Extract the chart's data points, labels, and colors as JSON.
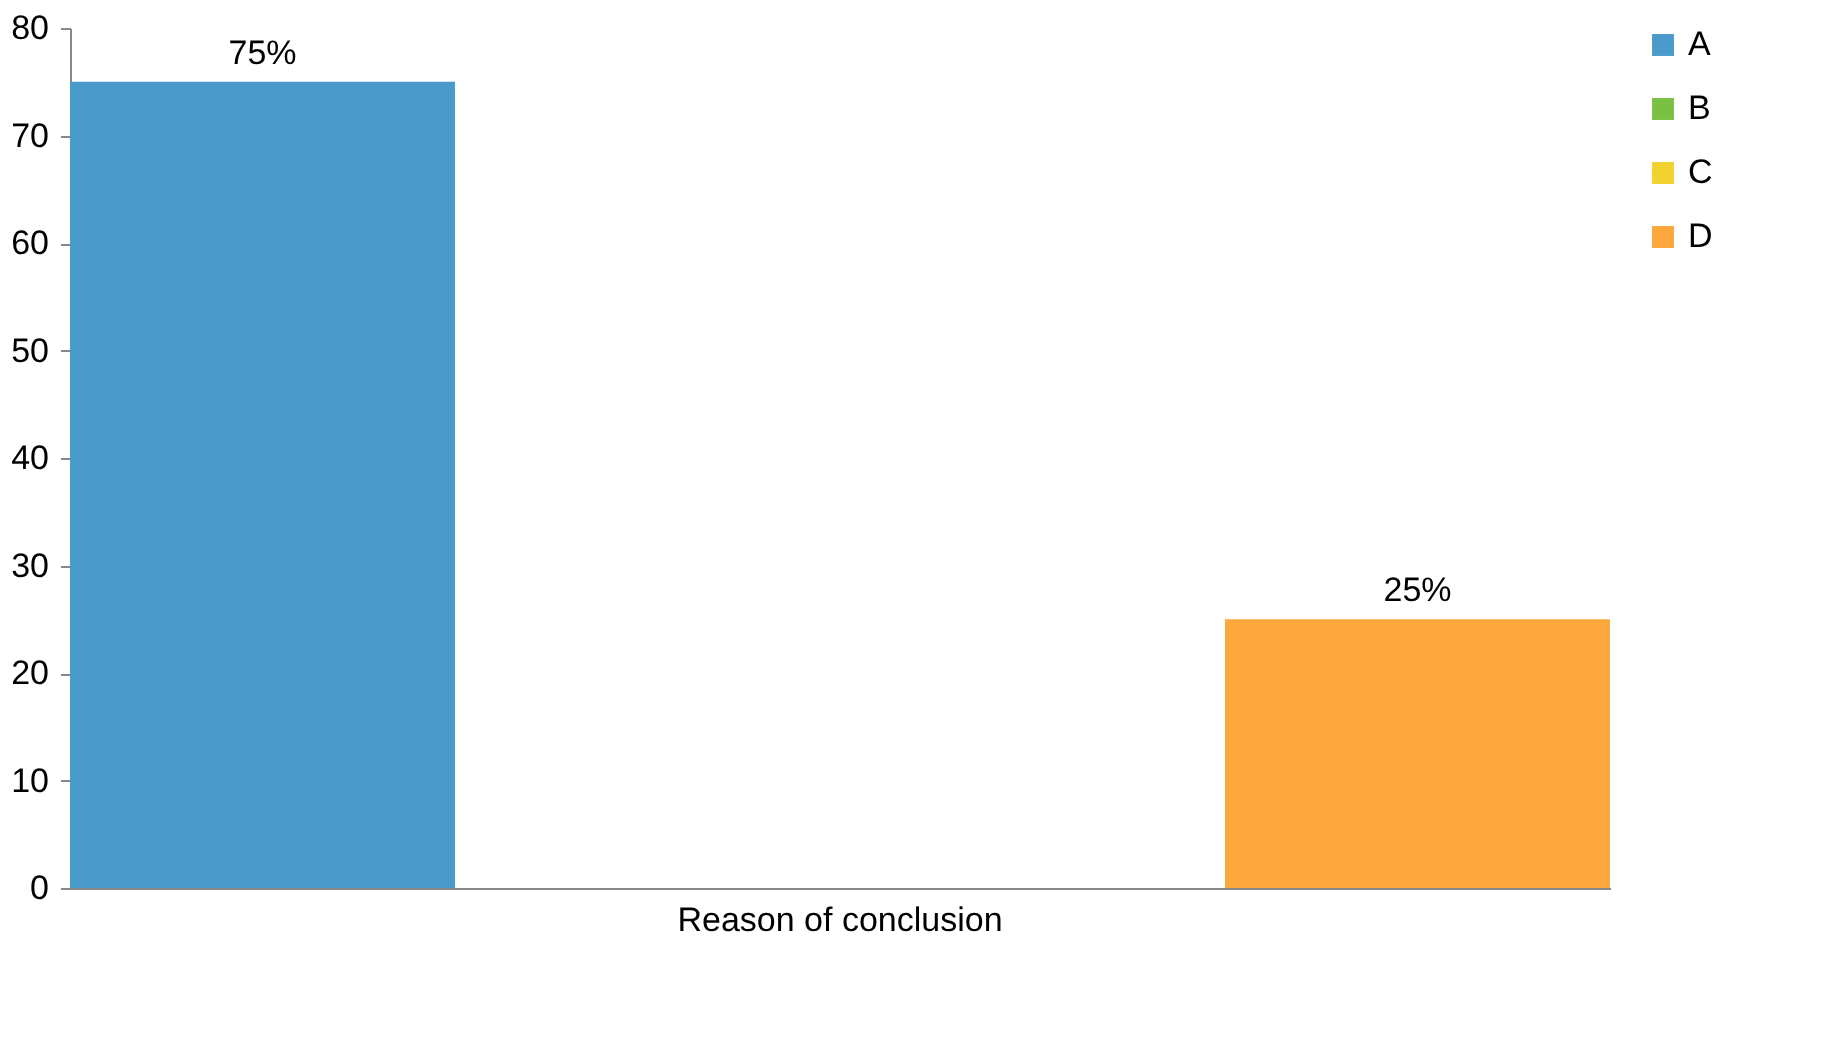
{
  "chart_data": {
    "type": "bar",
    "categories": [
      "Reason of conclusion"
    ],
    "series": [
      {
        "name": "A",
        "color": "#4a9bcc",
        "values": [
          75
        ],
        "value_labels": [
          "75%"
        ]
      },
      {
        "name": "B",
        "color": "#7ac143",
        "values": [
          null
        ],
        "value_labels": [
          null
        ]
      },
      {
        "name": "C",
        "color": "#f2d22e",
        "values": [
          null
        ],
        "value_labels": [
          null
        ]
      },
      {
        "name": "D",
        "color": "#fba73c",
        "values": [
          25
        ],
        "value_labels": [
          "25%"
        ]
      }
    ],
    "ylim": [
      0,
      80
    ],
    "yticks": [
      0,
      10,
      20,
      30,
      40,
      50,
      60,
      70,
      80
    ],
    "grid": false,
    "legend": "right"
  }
}
